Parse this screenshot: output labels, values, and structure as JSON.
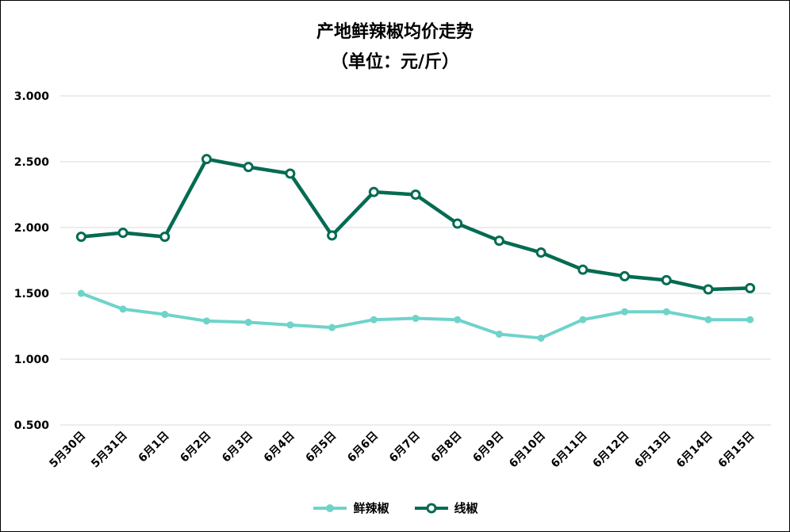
{
  "chart_data": {
    "type": "line",
    "title": "产地鲜辣椒均价走势",
    "subtitle": "（单位：元/斤）",
    "xlabel": "",
    "ylabel": "",
    "ylim": [
      0.5,
      3.0
    ],
    "yticks": [
      "0.500",
      "1.000",
      "1.500",
      "2.000",
      "2.500",
      "3.000"
    ],
    "grid": true,
    "legend_position": "bottom",
    "categories": [
      "5月30日",
      "5月31日",
      "6月1日",
      "6月2日",
      "6月3日",
      "6月4日",
      "6月5日",
      "6月6日",
      "6月7日",
      "6月8日",
      "6月9日",
      "6月10日",
      "6月11日",
      "6月12日",
      "6月13日",
      "6月14日",
      "6月15日"
    ],
    "series": [
      {
        "name": "鲜辣椒",
        "color": "#6fd3ca",
        "marker": "filled-circle",
        "values": [
          1.5,
          1.38,
          1.34,
          1.29,
          1.28,
          1.26,
          1.24,
          1.3,
          1.31,
          1.3,
          1.19,
          1.16,
          1.3,
          1.36,
          1.36,
          1.3,
          1.3
        ]
      },
      {
        "name": "线椒",
        "color": "#036b52",
        "marker": "hollow-circle",
        "values": [
          1.93,
          1.96,
          1.93,
          2.52,
          2.46,
          2.41,
          1.94,
          2.27,
          2.25,
          2.03,
          1.9,
          1.81,
          1.68,
          1.63,
          1.6,
          1.53,
          1.54
        ]
      }
    ]
  }
}
